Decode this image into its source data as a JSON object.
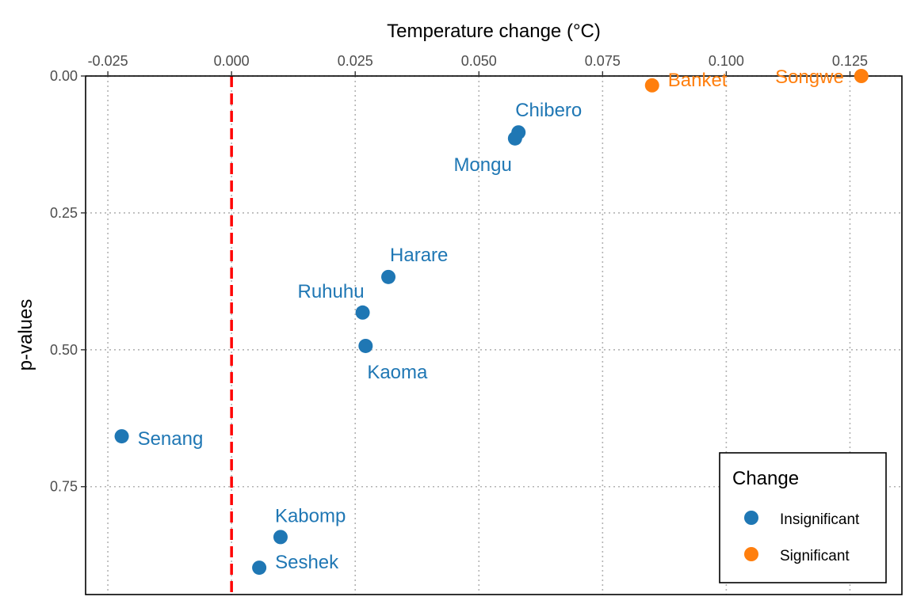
{
  "chart_data": {
    "type": "scatter",
    "title": "",
    "xlabel": "Temperature change (°C)",
    "ylabel": "p-values",
    "x_axis_position": "top",
    "y_axis_reversed": true,
    "xlim": [
      -0.0295,
      0.1355
    ],
    "ylim": [
      0.0,
      0.947
    ],
    "x_ticks": [
      -0.025,
      0.0,
      0.025,
      0.05,
      0.075,
      0.1,
      0.125
    ],
    "x_tick_labels": [
      "-0.025",
      "0.000",
      "0.025",
      "0.050",
      "0.075",
      "0.100",
      "0.125"
    ],
    "y_ticks": [
      0.0,
      0.25,
      0.5,
      0.75
    ],
    "y_tick_labels": [
      "0.00",
      "0.25",
      "0.50",
      "0.75"
    ],
    "grid": true,
    "reference_line": {
      "x": 0.0,
      "color": "#ff0000",
      "style": "dashed"
    },
    "series": [
      {
        "name": "Insignificant",
        "color": "#1f77b4"
      },
      {
        "name": "Significant",
        "color": "#ff7f0e"
      }
    ],
    "points": [
      {
        "label": "Songwe",
        "x": 0.1273,
        "y": 0.0,
        "change": "Significant"
      },
      {
        "label": "Banket",
        "x": 0.085,
        "y": 0.017,
        "change": "Significant"
      },
      {
        "label": "Chibero",
        "x": 0.058,
        "y": 0.103,
        "change": "Insignificant"
      },
      {
        "label": "Mongu",
        "x": 0.0573,
        "y": 0.114,
        "change": "Insignificant"
      },
      {
        "label": "Harare",
        "x": 0.0317,
        "y": 0.367,
        "change": "Insignificant"
      },
      {
        "label": "Ruhuhu",
        "x": 0.0265,
        "y": 0.432,
        "change": "Insignificant"
      },
      {
        "label": "Kaoma",
        "x": 0.0271,
        "y": 0.493,
        "change": "Insignificant"
      },
      {
        "label": "Senang",
        "x": -0.0222,
        "y": 0.658,
        "change": "Insignificant"
      },
      {
        "label": "Kabomp",
        "x": 0.0099,
        "y": 0.842,
        "change": "Insignificant"
      },
      {
        "label": "Seshek",
        "x": 0.0056,
        "y": 0.898,
        "change": "Insignificant"
      }
    ],
    "legend": {
      "title": "Change",
      "position": "bottom-right"
    }
  }
}
